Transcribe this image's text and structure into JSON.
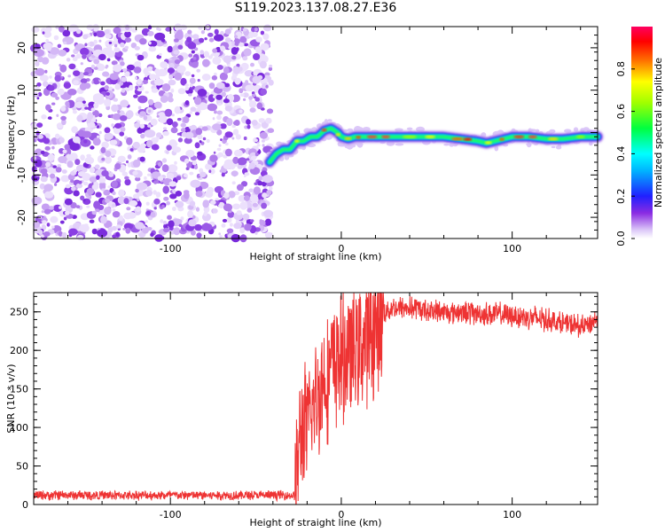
{
  "title": "S119.2023.137.08.27.E36",
  "chart_data": [
    {
      "type": "heatmap",
      "xlabel": "Height of straight line (km)",
      "ylabel": "Frequency (Hz)",
      "xlim": [
        -180,
        150
      ],
      "ylim": [
        -25,
        25
      ],
      "xticks": [
        -100,
        0,
        100
      ],
      "yticks": [
        -20,
        -10,
        0,
        10,
        20
      ],
      "grid": false,
      "noise_region": {
        "x_from": -180,
        "x_to": -40
      },
      "ridge": [
        [
          -42,
          -7
        ],
        [
          -38,
          -5
        ],
        [
          -34,
          -4
        ],
        [
          -30,
          -4
        ],
        [
          -26,
          -2
        ],
        [
          -22,
          -2
        ],
        [
          -18,
          -1
        ],
        [
          -14,
          -1
        ],
        [
          -10,
          0.5
        ],
        [
          -6,
          1
        ],
        [
          -2,
          0
        ],
        [
          0,
          -1
        ],
        [
          4,
          -1.5
        ],
        [
          8,
          -1
        ],
        [
          12,
          -1
        ],
        [
          20,
          -1
        ],
        [
          40,
          -1
        ],
        [
          60,
          -1
        ],
        [
          70,
          -1.5
        ],
        [
          80,
          -2
        ],
        [
          85,
          -2.5
        ],
        [
          90,
          -2
        ],
        [
          95,
          -1.5
        ],
        [
          100,
          -1
        ],
        [
          110,
          -1
        ],
        [
          120,
          -1.5
        ],
        [
          130,
          -1.5
        ],
        [
          140,
          -1
        ],
        [
          150,
          -1
        ]
      ],
      "colorbar": {
        "label": "Normalized spectral amplitude",
        "range": [
          0,
          1
        ],
        "ticks": [
          "0.0",
          "0.2",
          "0.4",
          "0.6",
          "0.8"
        ]
      }
    },
    {
      "type": "line",
      "xlabel": "Height of straight line (km)",
      "ylabel": "SNR (10 * v/v)",
      "xlim": [
        -180,
        150
      ],
      "ylim": [
        0,
        275
      ],
      "xticks": [
        -100,
        0,
        100
      ],
      "yticks": [
        0,
        50,
        100,
        150,
        200,
        250
      ],
      "color": "#ee3333",
      "grid": false,
      "series": [
        {
          "x": [
            -180,
            -160,
            -140,
            -120,
            -100,
            -80,
            -60,
            -40,
            -27,
            -25,
            -23,
            -20,
            -17,
            -14,
            -11,
            -8,
            -5,
            -2,
            0,
            5,
            10,
            15,
            20,
            25,
            30,
            40,
            50,
            60,
            70,
            80,
            90,
            100,
            110,
            120,
            130,
            140,
            150
          ],
          "y": [
            12,
            12,
            12,
            12,
            12,
            12,
            12,
            12,
            12,
            70,
            100,
            100,
            120,
            140,
            160,
            170,
            180,
            190,
            190,
            195,
            205,
            215,
            225,
            250,
            255,
            255,
            252,
            250,
            250,
            248,
            247,
            245,
            243,
            240,
            235,
            230,
            240
          ]
        }
      ]
    }
  ]
}
